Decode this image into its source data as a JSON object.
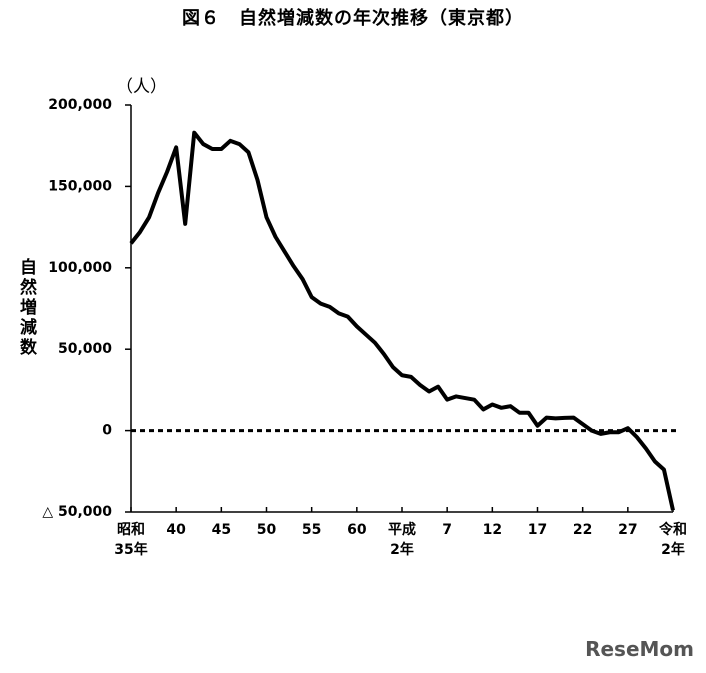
{
  "chart_data": {
    "type": "line",
    "title": "図６　自然増減数の年次推移（東京都）",
    "y_unit": "（人）",
    "y_label": "自然増減数",
    "watermark": "ReseMom",
    "categories": [
      "昭和\n35年",
      null,
      null,
      null,
      null,
      "40",
      null,
      null,
      null,
      null,
      "45",
      null,
      null,
      null,
      null,
      "50",
      null,
      null,
      null,
      null,
      "55",
      null,
      null,
      null,
      null,
      "60",
      null,
      null,
      null,
      null,
      "平成\n2年",
      null,
      null,
      null,
      null,
      "7",
      null,
      null,
      null,
      null,
      "12",
      null,
      null,
      null,
      null,
      "17",
      null,
      null,
      null,
      null,
      "22",
      null,
      null,
      null,
      null,
      "27",
      null,
      null,
      null,
      null,
      "令和\n2年"
    ],
    "series": [
      {
        "name": "自然増減数",
        "color": "#000000",
        "values": [
          115000,
          122000,
          131000,
          146000,
          159000,
          174000,
          127000,
          183000,
          176000,
          173000,
          173000,
          178000,
          176000,
          171000,
          154000,
          131000,
          119000,
          110000,
          101000,
          93000,
          82000,
          78000,
          76000,
          72000,
          70000,
          64000,
          59000,
          54000,
          47000,
          39000,
          34000,
          33000,
          28000,
          24000,
          27000,
          19000,
          21000,
          20000,
          19000,
          13000,
          16000,
          14000,
          15000,
          11000,
          11000,
          3000,
          8000,
          7500,
          7800,
          8000,
          4000,
          0,
          -2000,
          -1000,
          -1000,
          1500,
          -4000,
          -11000,
          -19000,
          -24000,
          -49000
        ]
      }
    ],
    "ylim": [
      -50000,
      200000
    ],
    "yticks": [
      {
        "value": -50000,
        "label": "△ 50,000"
      },
      0,
      {
        "value": 50000,
        "label": "50,000"
      },
      {
        "value": 100000,
        "label": "100,000"
      },
      {
        "value": 150000,
        "label": "150,000"
      },
      {
        "value": 200000,
        "label": "200,000"
      }
    ],
    "zero_line": "dotted"
  }
}
